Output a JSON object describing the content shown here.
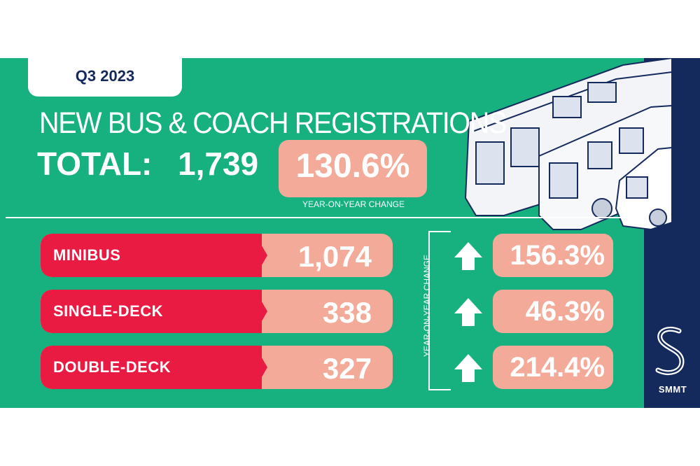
{
  "period": "Q3 2023",
  "headline": "NEW BUS & COACH REGISTRATIONS",
  "total": {
    "label": "TOTAL:",
    "value": "1,739",
    "change": "130.6%",
    "change_caption": "YEAR-ON-YEAR CHANGE"
  },
  "side_caption": "YEAR-ON-YEAR CHANGE",
  "rows": [
    {
      "label": "MINIBUS",
      "value": "1,074",
      "change": "156.3%",
      "direction": "up"
    },
    {
      "label": "SINGLE-DECK",
      "value": "338",
      "change": "46.3%",
      "direction": "up"
    },
    {
      "label": "DOUBLE-DECK",
      "value": "327",
      "change": "214.4%",
      "direction": "up"
    }
  ],
  "brand": "SMMT",
  "colors": {
    "panel": "#17b07f",
    "sidebar": "#152a5c",
    "red": "#e91b42",
    "salmon": "#f4aa99",
    "text": "#ffffff"
  },
  "icons": [
    "up-arrow-icon",
    "smmt-logo-icon",
    "vehicles-illustration"
  ]
}
